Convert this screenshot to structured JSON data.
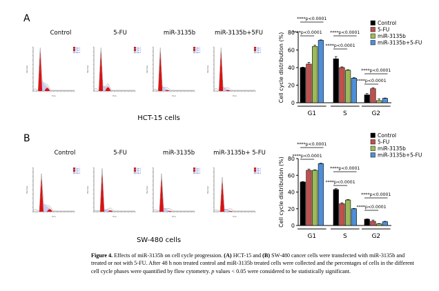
{
  "panels": [
    {
      "letter": "A",
      "cell_line_label": "HCT-15 cells",
      "histogram_titles": [
        "Control",
        "5-FU",
        "miR-3135b",
        "miR-3135b+5FU"
      ],
      "histogram_legend": [
        "Dip G1",
        "Dip G2",
        "Dip S-Phase"
      ],
      "histogram_axis": {
        "xlabel": "PI-A",
        "ylabel": "Number"
      }
    },
    {
      "letter": "B",
      "cell_line_label": "SW-480 cells",
      "histogram_titles": [
        "Control",
        "5-FU",
        "miR-3135b",
        "miR-3135b+ 5-FU"
      ],
      "histogram_legend": [
        "Dip G1",
        "Dip G2",
        "Dip S-Phase"
      ],
      "histogram_axis": {
        "xlabel": "PI-A",
        "ylabel": "Number"
      }
    }
  ],
  "chart_data": [
    {
      "type": "bar",
      "panel": "A",
      "title": "",
      "xlabel": "",
      "ylabel": "Cell cycle distribution (%)",
      "ylim": [
        0,
        80
      ],
      "yticks": [
        "0",
        "20",
        "40",
        "60",
        "80"
      ],
      "categories": [
        "G1",
        "S",
        "G2"
      ],
      "legend_position": "top-right",
      "series": [
        {
          "name": "Control",
          "color": "#000000",
          "values": [
            40,
            50,
            9
          ],
          "errors": [
            0.5,
            2.5,
            1.5
          ]
        },
        {
          "name": "5-FU",
          "color": "#c0504d",
          "values": [
            44,
            40,
            16
          ],
          "errors": [
            2,
            0.8,
            1.2
          ]
        },
        {
          "name": "miR-3135b",
          "color": "#9bbb59",
          "values": [
            64,
            37,
            2.5
          ],
          "errors": [
            1.5,
            0.5,
            2
          ]
        },
        {
          "name": "miR-3135b+5-FU",
          "color": "#4f8fd8",
          "values": [
            71,
            28,
            5
          ],
          "errors": [
            0.5,
            0.5,
            0.4
          ]
        }
      ],
      "significance": [
        {
          "group": "G1",
          "text": "****p<0.0001",
          "level": "upper"
        },
        {
          "group": "G1",
          "text": "****p<0.0001",
          "level": "lower"
        },
        {
          "group": "S",
          "text": "****p<0.0001",
          "level": "upper"
        },
        {
          "group": "S",
          "text": "****p<0.0001",
          "level": "lower"
        },
        {
          "group": "G2",
          "text": "****p<0.0001",
          "level": "upper"
        },
        {
          "group": "G2",
          "text": "****p<0.0001",
          "level": "lower"
        }
      ]
    },
    {
      "type": "bar",
      "panel": "B",
      "title": "",
      "xlabel": "",
      "ylabel": "Cell cycle distribution (%)",
      "ylim": [
        0,
        80
      ],
      "yticks": [
        "0",
        "20",
        "40",
        "60",
        "80"
      ],
      "categories": [
        "G1",
        "S",
        "G2"
      ],
      "legend_position": "top-right",
      "series": [
        {
          "name": "Control",
          "color": "#000000",
          "values": [
            52,
            43,
            7.5
          ],
          "errors": [
            0.6,
            1.2,
            0.4
          ]
        },
        {
          "name": "5-FU",
          "color": "#c0504d",
          "values": [
            66,
            26,
            5
          ],
          "errors": [
            1.5,
            1.2,
            1.5
          ]
        },
        {
          "name": "miR-3135b",
          "color": "#9bbb59",
          "values": [
            66,
            30.5,
            2
          ],
          "errors": [
            0.6,
            0.6,
            0.4
          ]
        },
        {
          "name": "miR-3135b+5-FU",
          "color": "#4f8fd8",
          "values": [
            74,
            20,
            4.5
          ],
          "errors": [
            0.5,
            0.4,
            0.5
          ]
        }
      ],
      "significance": [
        {
          "group": "G1",
          "text": "****p<0.0001",
          "level": "upper"
        },
        {
          "group": "G1",
          "text": "****p<0.0001",
          "level": "lower"
        },
        {
          "group": "S",
          "text": "****p<0.0001",
          "level": "upper"
        },
        {
          "group": "S",
          "text": "****p<0.0001",
          "level": "lower"
        },
        {
          "group": "G2",
          "text": "****p<0.0001",
          "level": "upper"
        },
        {
          "group": "G2",
          "text": "****p<0.0001",
          "level": "lower"
        }
      ]
    }
  ],
  "caption": {
    "label": "Figure 4.",
    "text_1": " Effects of miR-3135b on cell cycle progression. ",
    "a_label": "(A)",
    "text_2": " HCT-15 and ",
    "b_label": "(B)",
    "text_3": " SW-480 cancer cells were transfected with miR-3135b and treated or not with 5-FU. After 48 h non treated control and miR-3135b treated cells were collected and the percentages of cells in the different cell cycle phases were quantified by flow cytometry. ",
    "p_italic": "p",
    "text_4": " values < 0.05 were considered to be statistically significant."
  }
}
